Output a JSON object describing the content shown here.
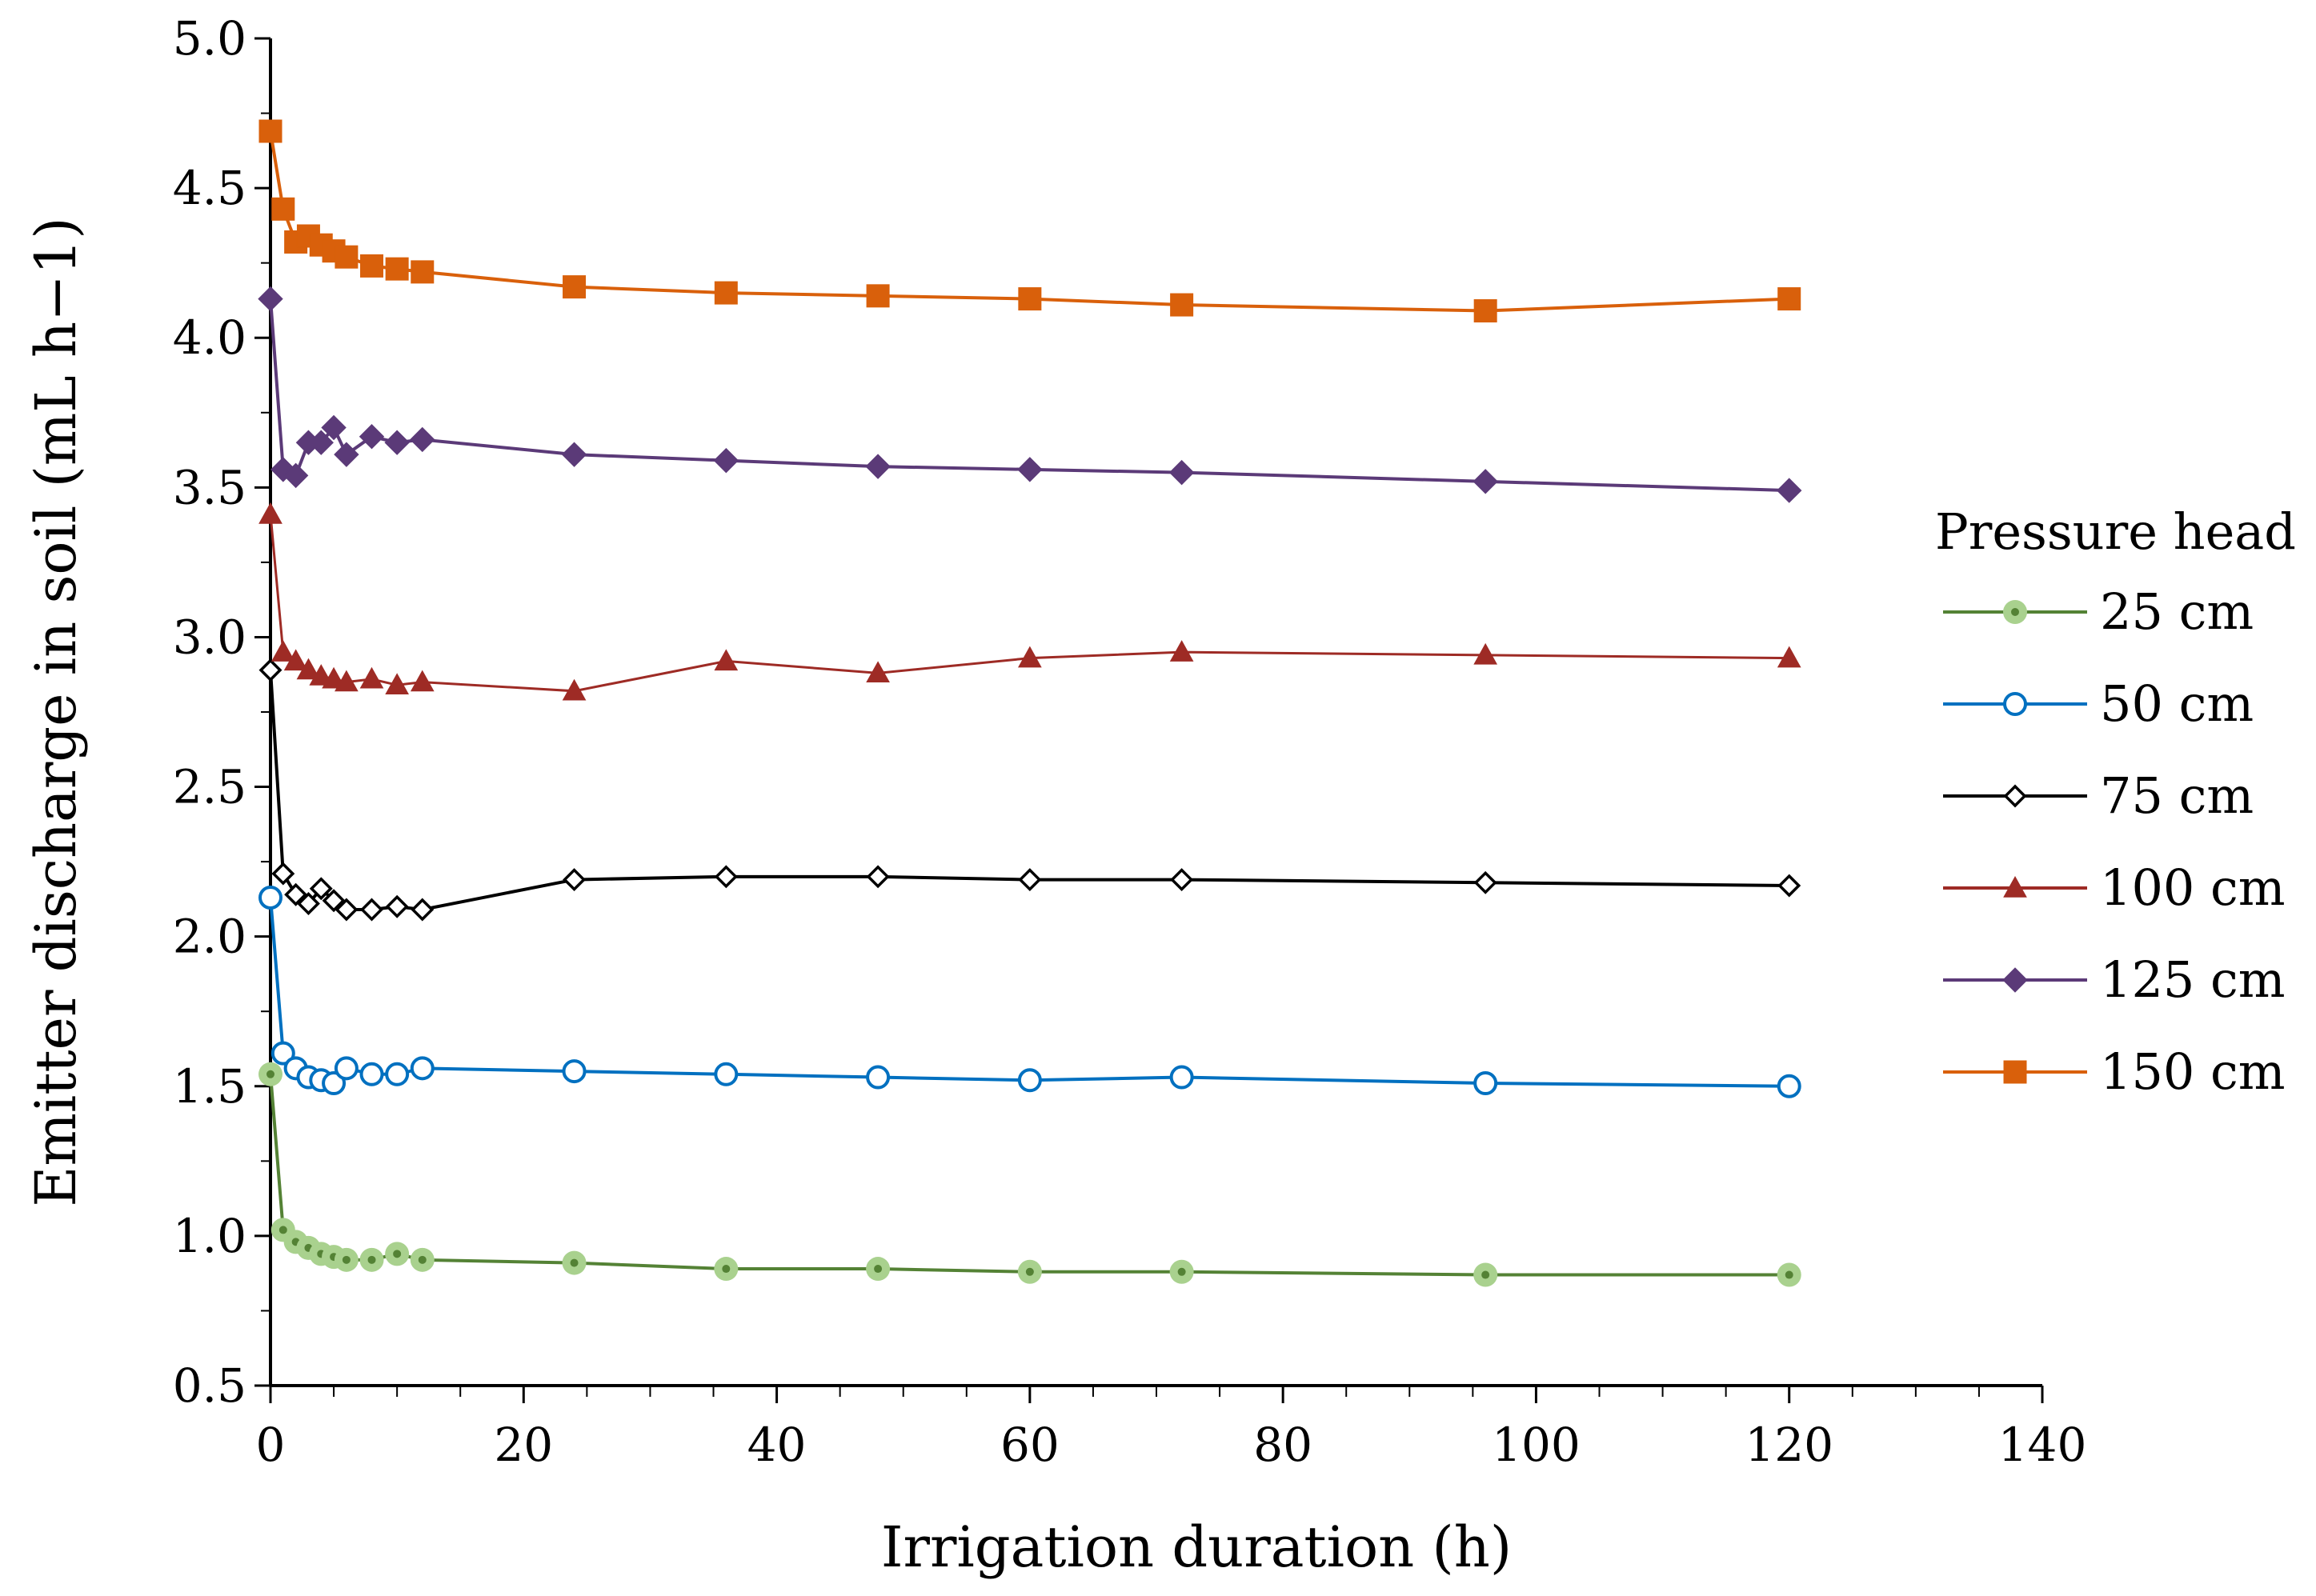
{
  "chart_data": {
    "type": "line",
    "xlabel": "Irrigation duration (h)",
    "ylabel": "Emitter discharge in soil (mL h−1)",
    "xlim": [
      0,
      140
    ],
    "ylim": [
      0.5,
      5.0
    ],
    "x_ticks": [
      "0",
      "20",
      "40",
      "60",
      "80",
      "100",
      "120",
      "140"
    ],
    "y_ticks": [
      "0.5",
      "1.0",
      "1.5",
      "2.0",
      "2.5",
      "3.0",
      "3.5",
      "4.0",
      "4.5",
      "5.0"
    ],
    "legend_title": "Pressure head",
    "legend_position": "right",
    "grid": false,
    "x": [
      0,
      1,
      2,
      3,
      4,
      5,
      6,
      8,
      10,
      12,
      24,
      36,
      48,
      60,
      72,
      96,
      120
    ],
    "series": [
      {
        "name": "25 cm",
        "color": "#548235",
        "marker": "circle-filled-light",
        "marker_fill": "#a9d18e",
        "values": [
          1.54,
          1.02,
          0.98,
          0.96,
          0.94,
          0.93,
          0.92,
          0.92,
          0.94,
          0.92,
          0.91,
          0.89,
          0.89,
          0.88,
          0.88,
          0.87,
          0.87
        ]
      },
      {
        "name": "50 cm",
        "color": "#0070c0",
        "marker": "circle-open",
        "values": [
          2.13,
          1.61,
          1.56,
          1.53,
          1.52,
          1.51,
          1.56,
          1.54,
          1.54,
          1.56,
          1.55,
          1.54,
          1.53,
          1.52,
          1.53,
          1.51,
          1.5
        ]
      },
      {
        "name": "75 cm",
        "color": "#000000",
        "marker": "diamond-open",
        "values": [
          2.89,
          2.21,
          2.14,
          2.11,
          2.16,
          2.12,
          2.09,
          2.09,
          2.1,
          2.09,
          2.19,
          2.2,
          2.2,
          2.19,
          2.19,
          2.18,
          2.17
        ]
      },
      {
        "name": "100 cm",
        "color": "#9e2b25",
        "marker": "triangle-filled",
        "values": [
          3.41,
          2.95,
          2.92,
          2.89,
          2.87,
          2.86,
          2.85,
          2.86,
          2.84,
          2.85,
          2.82,
          2.92,
          2.88,
          2.93,
          2.95,
          2.94,
          2.93
        ]
      },
      {
        "name": "125 cm",
        "color": "#5b3a78",
        "marker": "diamond-filled",
        "values": [
          4.13,
          3.56,
          3.54,
          3.65,
          3.65,
          3.7,
          3.61,
          3.67,
          3.65,
          3.66,
          3.61,
          3.59,
          3.57,
          3.56,
          3.55,
          3.52,
          3.49
        ]
      },
      {
        "name": "150 cm",
        "color": "#d9600b",
        "marker": "square-filled",
        "values": [
          4.69,
          4.43,
          4.32,
          4.34,
          4.31,
          4.29,
          4.27,
          4.24,
          4.23,
          4.22,
          4.17,
          4.15,
          4.14,
          4.13,
          4.11,
          4.09,
          4.13
        ]
      }
    ]
  }
}
